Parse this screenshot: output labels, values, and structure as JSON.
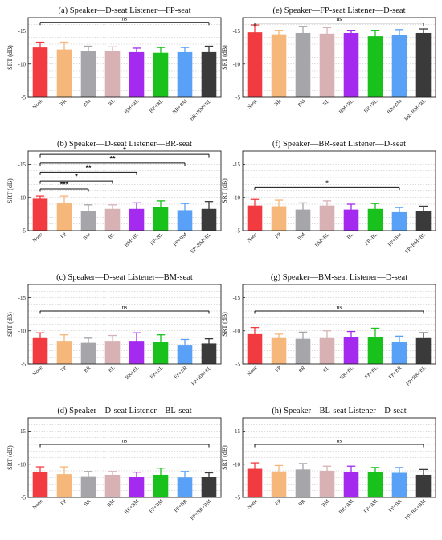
{
  "chart_data": [
    {
      "type": "bar",
      "title": "(a) Speaker—D-seat  Listener—FP-seat",
      "ylabel": "SRT (dB)",
      "ylim": [
        -5,
        -17
      ],
      "yticks": [
        -5,
        -10,
        -15
      ],
      "grid": "dotted horizontal",
      "categories": [
        "None",
        "BR",
        "BM",
        "BL",
        "BM+BL",
        "BR+BL",
        "BR+BM",
        "BR+BM+BL"
      ],
      "values": [
        -12.5,
        -12.2,
        -12.0,
        -12.0,
        -11.8,
        -11.7,
        -11.8,
        -11.8
      ],
      "errors": [
        0.8,
        1.1,
        0.7,
        0.6,
        0.6,
        0.8,
        0.7,
        0.9
      ],
      "colors": [
        "#f23b40",
        "#f5b77a",
        "#a6a5aa",
        "#d8b1b5",
        "#a32aee",
        "#19c11c",
        "#59a1f6",
        "#3a3a3a"
      ],
      "significance": [
        {
          "from": 0,
          "to": 7,
          "label": "ns",
          "y": -16.3
        }
      ]
    },
    {
      "type": "bar",
      "title": "(e) Speaker—FP-seat  Listener—D-seat",
      "ylabel": "SRT (dB)",
      "ylim": [
        -5,
        -17
      ],
      "yticks": [
        -5,
        -10,
        -15
      ],
      "grid": "dotted horizontal",
      "categories": [
        "None",
        "BR",
        "BM",
        "BL",
        "BM+BL",
        "BR+BL",
        "BR+BM",
        "BR+BM+BL"
      ],
      "values": [
        -14.8,
        -14.5,
        -14.7,
        -14.6,
        -14.7,
        -14.2,
        -14.4,
        -14.7
      ],
      "errors": [
        1.1,
        0.6,
        1.0,
        0.9,
        0.4,
        0.9,
        0.8,
        0.6
      ],
      "colors": [
        "#f23b40",
        "#f5b77a",
        "#a6a5aa",
        "#d8b1b5",
        "#a32aee",
        "#19c11c",
        "#59a1f6",
        "#3a3a3a"
      ],
      "significance": [
        {
          "from": 0,
          "to": 7,
          "label": "ns",
          "y": -16.2
        }
      ]
    },
    {
      "type": "bar",
      "title": "(b) Speaker—D-seat  Listener—BR-seat",
      "ylabel": "SRT (dB)",
      "ylim": [
        -5,
        -17
      ],
      "yticks": [
        -5,
        -10,
        -15
      ],
      "grid": "dotted horizontal",
      "categories": [
        "None",
        "FP",
        "BM",
        "BL",
        "BM+BL",
        "FP+BL",
        "FP+BM",
        "FP+BM+BL"
      ],
      "values": [
        -9.8,
        -9.2,
        -8.0,
        -8.3,
        -8.3,
        -8.6,
        -8.1,
        -8.3
      ],
      "errors": [
        0.4,
        1.0,
        0.9,
        0.6,
        0.9,
        0.9,
        1.0,
        1.1
      ],
      "colors": [
        "#f23b40",
        "#f5b77a",
        "#a6a5aa",
        "#d8b1b5",
        "#a32aee",
        "#19c11c",
        "#59a1f6",
        "#3a3a3a"
      ],
      "significance": [
        {
          "from": 0,
          "to": 7,
          "label": "*",
          "y": -16.5
        },
        {
          "from": 0,
          "to": 6,
          "label": "**",
          "y": -15.2
        },
        {
          "from": 0,
          "to": 4,
          "label": "**",
          "y": -13.8
        },
        {
          "from": 0,
          "to": 3,
          "label": "*",
          "y": -12.5
        },
        {
          "from": 0,
          "to": 2,
          "label": "***",
          "y": -11.3
        }
      ]
    },
    {
      "type": "bar",
      "title": "(f) Speaker—BR-seat  Listener—D-seat",
      "ylabel": "SRT (dB)",
      "ylim": [
        -5,
        -17
      ],
      "yticks": [
        -5,
        -10,
        -15
      ],
      "grid": "dotted horizontal",
      "categories": [
        "None",
        "FP",
        "BM",
        "BM+BL",
        "BL",
        "FP+BL",
        "FP+BM",
        "FP+BM+BL"
      ],
      "values": [
        -8.8,
        -8.7,
        -8.2,
        -8.8,
        -8.2,
        -8.3,
        -7.8,
        -8.0
      ],
      "errors": [
        0.9,
        0.9,
        1.0,
        0.7,
        0.8,
        0.8,
        0.7,
        0.7
      ],
      "colors": [
        "#f23b40",
        "#f5b77a",
        "#a6a5aa",
        "#d8b1b5",
        "#a32aee",
        "#19c11c",
        "#59a1f6",
        "#3a3a3a"
      ],
      "significance": [
        {
          "from": 0,
          "to": 6,
          "label": "*",
          "y": -11.5
        }
      ]
    },
    {
      "type": "bar",
      "title": "(c) Speaker—D-seat  Listener—BM-seat",
      "ylabel": "SRT (dB)",
      "ylim": [
        -5,
        -17
      ],
      "yticks": [
        -5,
        -10,
        -15
      ],
      "grid": "dotted horizontal",
      "categories": [
        "None",
        "FP",
        "BR",
        "BL",
        "BR+BL",
        "FP+BL",
        "FP+BR",
        "FP+BR+BL"
      ],
      "values": [
        -8.9,
        -8.5,
        -8.2,
        -8.5,
        -8.5,
        -8.3,
        -7.9,
        -8.1
      ],
      "errors": [
        0.8,
        0.9,
        0.7,
        0.8,
        1.2,
        1.1,
        0.8,
        0.7
      ],
      "colors": [
        "#f23b40",
        "#f5b77a",
        "#a6a5aa",
        "#d8b1b5",
        "#a32aee",
        "#19c11c",
        "#59a1f6",
        "#3a3a3a"
      ],
      "significance": [
        {
          "from": 0,
          "to": 7,
          "label": "ns",
          "y": -13.0
        }
      ]
    },
    {
      "type": "bar",
      "title": "(g) Speaker—BM-seat  Listener—D-seat",
      "ylabel": "SRT (dB)",
      "ylim": [
        -5,
        -17
      ],
      "yticks": [
        -5,
        -10,
        -15
      ],
      "grid": "dotted horizontal",
      "categories": [
        "None",
        "FP",
        "BR",
        "BL",
        "BR+BL",
        "FP+BL",
        "FP+BR",
        "FP+BR+BL"
      ],
      "values": [
        -9.5,
        -8.9,
        -8.8,
        -8.9,
        -9.1,
        -9.1,
        -8.3,
        -8.9
      ],
      "errors": [
        1.0,
        0.6,
        1.0,
        1.1,
        0.8,
        1.3,
        0.9,
        0.8
      ],
      "colors": [
        "#f23b40",
        "#f5b77a",
        "#a6a5aa",
        "#d8b1b5",
        "#a32aee",
        "#19c11c",
        "#59a1f6",
        "#3a3a3a"
      ],
      "significance": [
        {
          "from": 0,
          "to": 7,
          "label": "ns",
          "y": -13.0
        }
      ]
    },
    {
      "type": "bar",
      "title": "(d) Speaker—D-seat  Listener—BL-seat",
      "ylabel": "SRT (dB)",
      "ylim": [
        -5,
        -17
      ],
      "yticks": [
        -5,
        -10,
        -15
      ],
      "grid": "dotted horizontal",
      "categories": [
        "None",
        "FP",
        "BR",
        "BM",
        "BR+BM",
        "FP+BM",
        "FP+BR",
        "FP+BR+BM"
      ],
      "values": [
        -8.8,
        -8.5,
        -8.2,
        -8.4,
        -8.1,
        -8.4,
        -8.0,
        -8.1
      ],
      "errors": [
        0.8,
        1.1,
        0.7,
        0.5,
        0.7,
        1.0,
        0.9,
        0.6
      ],
      "colors": [
        "#f23b40",
        "#f5b77a",
        "#a6a5aa",
        "#d8b1b5",
        "#a32aee",
        "#19c11c",
        "#59a1f6",
        "#3a3a3a"
      ],
      "significance": [
        {
          "from": 0,
          "to": 7,
          "label": "ns",
          "y": -13.0
        }
      ]
    },
    {
      "type": "bar",
      "title": "(h) Speaker—BL-seat  Listener—D-seat",
      "ylabel": "SRT (dB)",
      "ylim": [
        -5,
        -17
      ],
      "yticks": [
        -5,
        -10,
        -15
      ],
      "grid": "dotted horizontal",
      "categories": [
        "None",
        "FP",
        "BR",
        "BM",
        "BR+BM",
        "FP+BM",
        "FP+BR",
        "FP+BR+BM"
      ],
      "values": [
        -9.3,
        -8.9,
        -9.2,
        -9.0,
        -8.8,
        -8.8,
        -8.7,
        -8.4
      ],
      "errors": [
        0.9,
        0.9,
        0.9,
        0.7,
        0.9,
        0.7,
        0.8,
        0.8
      ],
      "colors": [
        "#f23b40",
        "#f5b77a",
        "#a6a5aa",
        "#d8b1b5",
        "#a32aee",
        "#19c11c",
        "#59a1f6",
        "#3a3a3a"
      ],
      "significance": [
        {
          "from": 0,
          "to": 7,
          "label": "ns",
          "y": -13.0
        }
      ]
    }
  ]
}
